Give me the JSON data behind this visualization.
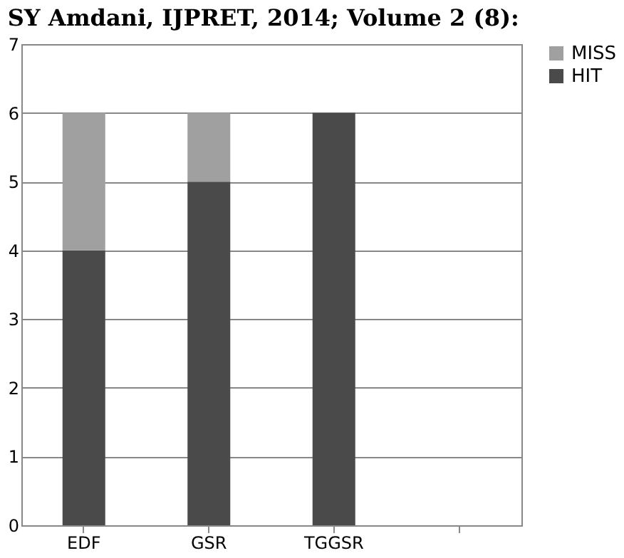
{
  "chart_data": {
    "type": "bar",
    "title": "SY Amdani, IJPRET, 2014; Volume 2 (8):",
    "categories": [
      "EDF",
      "GSR",
      "TGGSR",
      null
    ],
    "stacked": true,
    "series": [
      {
        "name": "HIT",
        "color": "#4a4a4a",
        "values": [
          4,
          5,
          6,
          null
        ]
      },
      {
        "name": "MISS",
        "color": "#a0a0a0",
        "values": [
          2,
          1,
          0,
          null
        ]
      }
    ],
    "ylim": [
      0,
      7
    ],
    "yticks": [
      0,
      1,
      2,
      3,
      4,
      5,
      6,
      7
    ],
    "grid": "y",
    "legend": "right"
  }
}
